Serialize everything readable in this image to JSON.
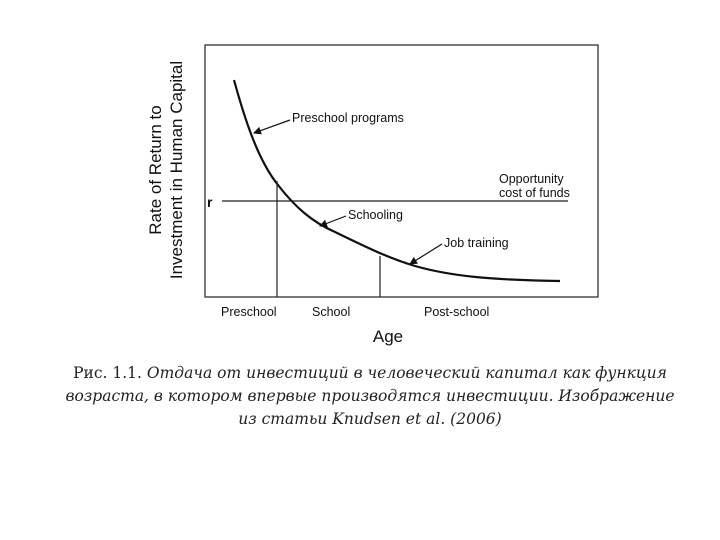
{
  "figure": {
    "y_axis_label": [
      "Rate of Return to",
      "Investment in Human Capital"
    ],
    "x_axis_label": "Age",
    "r_label": "r",
    "curve_labels": [
      "Preschool programs",
      "Schooling",
      "Job training"
    ],
    "opportunity_label": [
      "Opportunity",
      "cost of funds"
    ],
    "stages": [
      "Preschool",
      "School",
      "Post-school"
    ]
  },
  "caption": {
    "label": "Рис. 1.1.",
    "lines": [
      "Отдача от инвестиций в человеческий капитал как функция",
      "возраста, в котором впервые производятся инвестиции. Изображение",
      "из статьи Knudsen et al. (2006)"
    ]
  }
}
